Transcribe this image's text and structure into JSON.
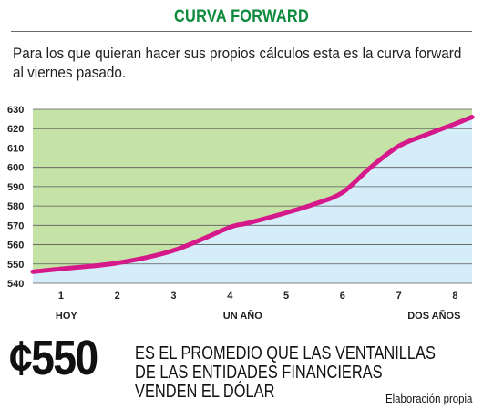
{
  "header": {
    "title": "CURVA FORWARD",
    "subtitle": "Para los que quieran hacer sus propios cálculos esta es la curva forward al viernes pasado."
  },
  "colors": {
    "title": "#0d8a3c",
    "above_curve_fill": "#c6e3a7",
    "below_curve_fill": "#d5ecf9",
    "line": "#d6198a"
  },
  "chart_data": {
    "type": "area",
    "title": "CURVA FORWARD",
    "xlabel": "",
    "ylabel": "",
    "x_ticks": [
      1,
      2,
      3,
      4,
      5,
      6,
      7,
      8
    ],
    "y_ticks": [
      540,
      550,
      560,
      570,
      580,
      590,
      600,
      610,
      620,
      630
    ],
    "xlim": [
      0.5,
      8.3
    ],
    "ylim": [
      540,
      630
    ],
    "grid": true,
    "period_labels": [
      "HOY",
      "UN AÑO",
      "DOS AÑOS"
    ],
    "series": [
      {
        "x": [
          0.5,
          1,
          2,
          3,
          4,
          4.3,
          5,
          5.5,
          6,
          6.5,
          7,
          7.5,
          8,
          8.3
        ],
        "y": [
          546,
          547.5,
          550.5,
          557,
          569,
          571,
          576.5,
          581,
          587,
          600,
          611,
          617,
          622.5,
          626
        ]
      }
    ]
  },
  "footer": {
    "amount": "¢550",
    "statement": "ES EL PROMEDIO QUE LAS VENTANILLAS DE LAS ENTIDADES FINANCIERAS VENDEN EL DÓLAR",
    "source": "Elaboración propia"
  }
}
